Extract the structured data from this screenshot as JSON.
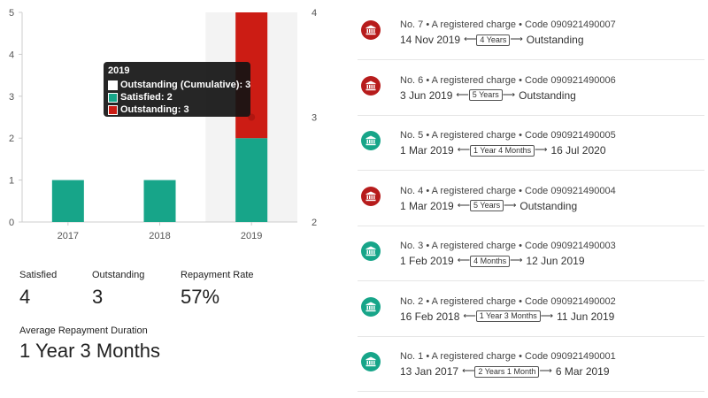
{
  "chart_data": {
    "type": "bar",
    "categories": [
      "2017",
      "2018",
      "2019"
    ],
    "series": [
      {
        "name": "Satisfied",
        "values": [
          1,
          1,
          2
        ],
        "color": "#17a589"
      },
      {
        "name": "Outstanding",
        "values": [
          0,
          0,
          3
        ],
        "color": "#cc1c14"
      }
    ],
    "line_series": {
      "name": "Outstanding (Cumulative)",
      "values": [
        null,
        null,
        3
      ],
      "axis": "right"
    },
    "y_left": {
      "ticks": [
        "0",
        "1",
        "2",
        "3",
        "4",
        "5"
      ],
      "range": [
        0,
        5
      ]
    },
    "y_right": {
      "ticks": [
        "2",
        "3",
        "4"
      ],
      "range": [
        2,
        4
      ]
    },
    "tooltip": {
      "title": "2019",
      "rows": [
        {
          "label": "Outstanding (Cumulative): 3",
          "color": "#ffffff"
        },
        {
          "label": "Satisfied: 2",
          "color": "#17a589"
        },
        {
          "label": "Outstanding: 3",
          "color": "#cc1c14"
        }
      ]
    },
    "grid": false,
    "highlight_category": "2019"
  },
  "stats": {
    "satisfied": {
      "label": "Satisfied",
      "value": "4"
    },
    "outstanding": {
      "label": "Outstanding",
      "value": "3"
    },
    "rate": {
      "label": "Repayment Rate",
      "value": "57%"
    },
    "avg": {
      "label": "Average Repayment Duration",
      "value": "1 Year 3 Months"
    }
  },
  "charges": [
    {
      "title": "No. 7 • A registered charge • Code 090921490007",
      "start": "14 Nov 2019",
      "duration": "4 Years",
      "end": "Outstanding",
      "status": "outstanding",
      "icon": "bank-icon"
    },
    {
      "title": "No. 6 • A registered charge • Code 090921490006",
      "start": "3 Jun 2019",
      "duration": "5 Years",
      "end": "Outstanding",
      "status": "outstanding",
      "icon": "bank-icon"
    },
    {
      "title": "No. 5 • A registered charge • Code 090921490005",
      "start": "1 Mar 2019",
      "duration": "1 Year 4 Months",
      "end": "16 Jul 2020",
      "status": "satisfied",
      "icon": "bank-icon"
    },
    {
      "title": "No. 4 • A registered charge • Code 090921490004",
      "start": "1 Mar 2019",
      "duration": "5 Years",
      "end": "Outstanding",
      "status": "outstanding",
      "icon": "bank-icon"
    },
    {
      "title": "No. 3 • A registered charge • Code 090921490003",
      "start": "1 Feb 2019",
      "duration": "4 Months",
      "end": "12 Jun 2019",
      "status": "satisfied",
      "icon": "bank-icon"
    },
    {
      "title": "No. 2 • A registered charge • Code 090921490002",
      "start": "16 Feb 2018",
      "duration": "1 Year 3 Months",
      "end": "11 Jun 2019",
      "status": "satisfied",
      "icon": "bank-icon"
    },
    {
      "title": "No. 1 • A registered charge • Code 090921490001",
      "start": "13 Jan 2017",
      "duration": "2 Years 1 Month",
      "end": "6 Mar 2019",
      "status": "satisfied",
      "icon": "bank-icon"
    }
  ],
  "colors": {
    "satisfied": "#17a589",
    "outstanding": "#b71c1c"
  },
  "arrows": {
    "left": "⟵",
    "right": "⟶"
  }
}
